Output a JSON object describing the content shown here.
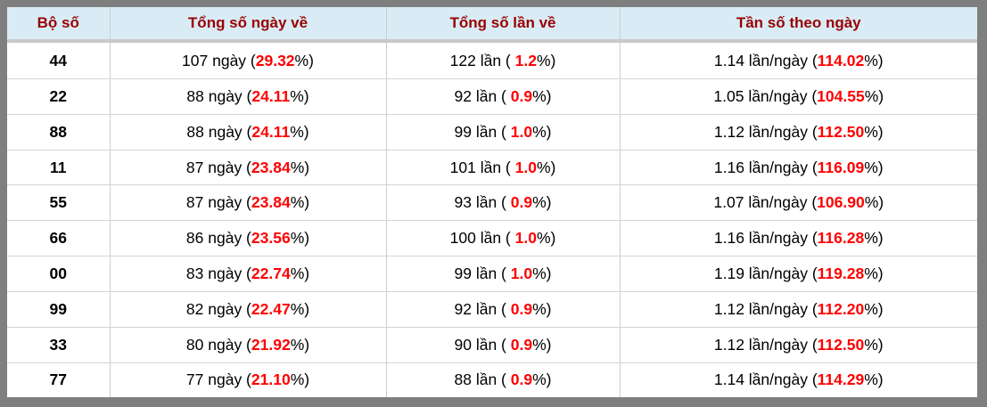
{
  "colors": {
    "frame_gray": "#7f7f7f",
    "header_bg": "#d9ecf6",
    "header_text": "#990000",
    "highlight_red": "#ff0000",
    "grid_line": "#cccccc"
  },
  "table": {
    "header": {
      "columns": [
        "Bộ số",
        "Tổng số ngày về",
        "Tổng số lần về",
        "Tần số theo ngày"
      ]
    },
    "rows": [
      {
        "pair": "44",
        "days": [
          {
            "t": "107 ngày ("
          },
          {
            "t": "29.32",
            "red": true
          },
          {
            "t": "%)"
          }
        ],
        "times": [
          {
            "t": "122 lần ( "
          },
          {
            "t": "1.2",
            "red": true
          },
          {
            "t": "%)"
          }
        ],
        "freq": [
          {
            "t": "1.14 lần/ngày ("
          },
          {
            "t": "114.02",
            "red": true
          },
          {
            "t": "%)"
          }
        ]
      },
      {
        "pair": "22",
        "days": [
          {
            "t": "88 ngày ("
          },
          {
            "t": "24.11",
            "red": true
          },
          {
            "t": "%)"
          }
        ],
        "times": [
          {
            "t": "92 lần ( "
          },
          {
            "t": "0.9",
            "red": true
          },
          {
            "t": "%)"
          }
        ],
        "freq": [
          {
            "t": "1.05 lần/ngày ("
          },
          {
            "t": "104.55",
            "red": true
          },
          {
            "t": "%)"
          }
        ]
      },
      {
        "pair": "88",
        "days": [
          {
            "t": "88 ngày ("
          },
          {
            "t": "24.11",
            "red": true
          },
          {
            "t": "%)"
          }
        ],
        "times": [
          {
            "t": "99 lần ( "
          },
          {
            "t": "1.0",
            "red": true
          },
          {
            "t": "%)"
          }
        ],
        "freq": [
          {
            "t": "1.12 lần/ngày ("
          },
          {
            "t": "112.50",
            "red": true
          },
          {
            "t": "%)"
          }
        ]
      },
      {
        "pair": "11",
        "days": [
          {
            "t": "87 ngày ("
          },
          {
            "t": "23.84",
            "red": true
          },
          {
            "t": "%)"
          }
        ],
        "times": [
          {
            "t": "101 lần ( "
          },
          {
            "t": "1.0",
            "red": true
          },
          {
            "t": "%)"
          }
        ],
        "freq": [
          {
            "t": "1.16 lần/ngày ("
          },
          {
            "t": "116.09",
            "red": true
          },
          {
            "t": "%)"
          }
        ]
      },
      {
        "pair": "55",
        "days": [
          {
            "t": "87 ngày ("
          },
          {
            "t": "23.84",
            "red": true
          },
          {
            "t": "%)"
          }
        ],
        "times": [
          {
            "t": "93 lần ( "
          },
          {
            "t": "0.9",
            "red": true
          },
          {
            "t": "%)"
          }
        ],
        "freq": [
          {
            "t": "1.07 lần/ngày ("
          },
          {
            "t": "106.90",
            "red": true
          },
          {
            "t": "%)"
          }
        ]
      },
      {
        "pair": "66",
        "days": [
          {
            "t": "86 ngày ("
          },
          {
            "t": "23.56",
            "red": true
          },
          {
            "t": "%)"
          }
        ],
        "times": [
          {
            "t": "100 lần ( "
          },
          {
            "t": "1.0",
            "red": true
          },
          {
            "t": "%)"
          }
        ],
        "freq": [
          {
            "t": "1.16 lần/ngày ("
          },
          {
            "t": "116.28",
            "red": true
          },
          {
            "t": "%)"
          }
        ]
      },
      {
        "pair": "00",
        "days": [
          {
            "t": "83 ngày ("
          },
          {
            "t": "22.74",
            "red": true
          },
          {
            "t": "%)"
          }
        ],
        "times": [
          {
            "t": "99 lần ( "
          },
          {
            "t": "1.0",
            "red": true
          },
          {
            "t": "%)"
          }
        ],
        "freq": [
          {
            "t": "1.19 lần/ngày ("
          },
          {
            "t": "119.28",
            "red": true
          },
          {
            "t": "%)"
          }
        ]
      },
      {
        "pair": "99",
        "days": [
          {
            "t": "82 ngày ("
          },
          {
            "t": "22.47",
            "red": true
          },
          {
            "t": "%)"
          }
        ],
        "times": [
          {
            "t": "92 lần ( "
          },
          {
            "t": "0.9",
            "red": true
          },
          {
            "t": "%)"
          }
        ],
        "freq": [
          {
            "t": "1.12 lần/ngày ("
          },
          {
            "t": "112.20",
            "red": true
          },
          {
            "t": "%)"
          }
        ]
      },
      {
        "pair": "33",
        "days": [
          {
            "t": "80 ngày ("
          },
          {
            "t": "21.92",
            "red": true
          },
          {
            "t": "%)"
          }
        ],
        "times": [
          {
            "t": "90 lần ( "
          },
          {
            "t": "0.9",
            "red": true
          },
          {
            "t": "%)"
          }
        ],
        "freq": [
          {
            "t": "1.12 lần/ngày ("
          },
          {
            "t": "112.50",
            "red": true
          },
          {
            "t": "%)"
          }
        ]
      },
      {
        "pair": "77",
        "days": [
          {
            "t": "77 ngày ("
          },
          {
            "t": "21.10",
            "red": true
          },
          {
            "t": "%)"
          }
        ],
        "times": [
          {
            "t": "88 lần ( "
          },
          {
            "t": "0.9",
            "red": true
          },
          {
            "t": "%)"
          }
        ],
        "freq": [
          {
            "t": "1.14 lần/ngày ("
          },
          {
            "t": "114.29",
            "red": true
          },
          {
            "t": "%)"
          }
        ]
      }
    ]
  }
}
